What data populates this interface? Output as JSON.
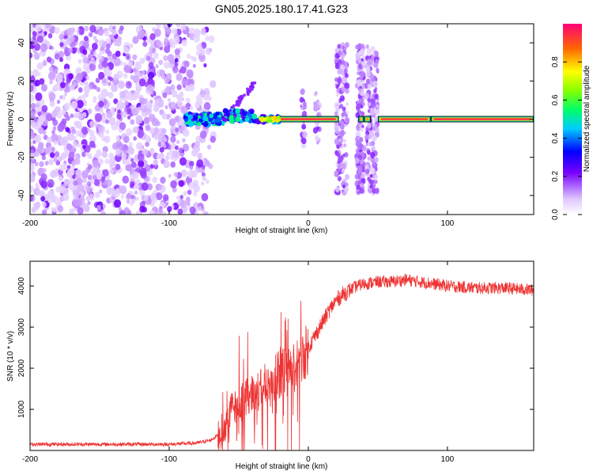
{
  "title": "GN05.2025.180.17.41.G23",
  "chart_data": [
    {
      "type": "heatmap",
      "xlabel": "Height of straight line (km)",
      "ylabel": "Frequency (Hz)",
      "xlim": [
        -200,
        162
      ],
      "ylim": [
        -50,
        50
      ],
      "x_ticks": [
        -200,
        -100,
        0,
        100
      ],
      "y_ticks": [
        -40,
        -20,
        0,
        20,
        40
      ],
      "colorbar": {
        "label": "Normalized spectral amplitude",
        "range": [
          0,
          1
        ],
        "ticks": [
          0,
          0.2,
          0.4,
          0.6,
          0.8
        ]
      },
      "regions": [
        {
          "desc": "noise",
          "x": [
            -200,
            -70
          ],
          "y": [
            -50,
            50
          ],
          "amplitude": [
            0.05,
            0.2
          ]
        },
        {
          "desc": "carrier",
          "x": [
            -85,
            162
          ],
          "y": [
            -1,
            1
          ],
          "amplitude": [
            0.2,
            1.0
          ]
        },
        {
          "desc": "burst",
          "x": [
            20,
            50
          ],
          "y": [
            -35,
            40
          ],
          "amplitude": [
            0.05,
            0.15
          ]
        }
      ]
    },
    {
      "type": "line",
      "xlabel": "Height of straight line (km)",
      "ylabel": "SNR (10 * v/v)",
      "xlim": [
        -200,
        162
      ],
      "ylim": [
        0,
        4600
      ],
      "x_ticks": [
        -200,
        -100,
        0,
        100
      ],
      "y_ticks": [
        1000,
        2000,
        3000,
        4000
      ],
      "series": [
        {
          "color": "#ee3333",
          "x": [
            -200,
            -150,
            -100,
            -80,
            -70,
            -60,
            -55,
            -50,
            -45,
            -40,
            -35,
            -30,
            -25,
            -20,
            -15,
            -10,
            -5,
            0,
            5,
            10,
            15,
            20,
            25,
            30,
            35,
            40,
            50,
            60,
            70,
            80,
            100,
            120,
            140,
            162
          ],
          "y": [
            150,
            150,
            150,
            180,
            250,
            500,
            1000,
            1200,
            1300,
            1400,
            1500,
            1650,
            1700,
            1800,
            1900,
            2000,
            2200,
            2500,
            2800,
            3100,
            3400,
            3650,
            3800,
            3900,
            4000,
            4050,
            4100,
            4100,
            4150,
            4100,
            4000,
            3950,
            3950,
            3900
          ]
        }
      ]
    }
  ]
}
